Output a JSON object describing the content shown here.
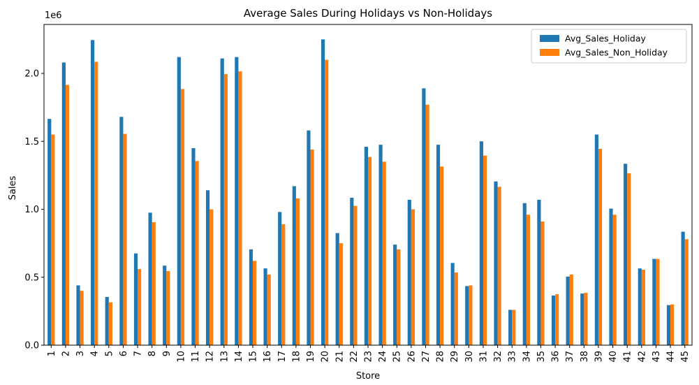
{
  "chart_data": {
    "type": "bar",
    "title": "Average Sales During Holidays vs Non-Holidays",
    "xlabel": "Store",
    "ylabel": "Sales",
    "y_offset_label": "1e6",
    "ylim": [
      0,
      2.36
    ],
    "yticks": [
      0.0,
      0.5,
      1.0,
      1.5,
      2.0
    ],
    "ytick_labels": [
      "0.0",
      "0.5",
      "1.0",
      "1.5",
      "2.0"
    ],
    "legend_position": "top-right",
    "grid": false,
    "categories": [
      "1",
      "2",
      "3",
      "4",
      "5",
      "6",
      "7",
      "8",
      "9",
      "10",
      "11",
      "12",
      "13",
      "14",
      "15",
      "16",
      "17",
      "18",
      "19",
      "20",
      "21",
      "22",
      "23",
      "24",
      "25",
      "26",
      "27",
      "28",
      "29",
      "30",
      "31",
      "32",
      "33",
      "34",
      "35",
      "36",
      "37",
      "38",
      "39",
      "40",
      "41",
      "42",
      "43",
      "44",
      "45"
    ],
    "series": [
      {
        "name": "Avg_Sales_Holiday",
        "color": "#1f77b4",
        "values": [
          1.665,
          2.08,
          0.44,
          2.245,
          0.355,
          1.68,
          0.675,
          0.975,
          0.585,
          2.12,
          1.45,
          1.14,
          2.11,
          2.12,
          0.705,
          0.565,
          0.98,
          1.17,
          1.58,
          2.25,
          0.825,
          1.085,
          1.46,
          1.475,
          0.74,
          1.07,
          1.89,
          1.475,
          0.605,
          0.435,
          1.5,
          1.205,
          0.26,
          1.045,
          1.07,
          0.365,
          0.505,
          0.38,
          1.55,
          1.005,
          1.335,
          0.565,
          0.635,
          0.295,
          0.835
        ]
      },
      {
        "name": "Avg_Sales_Non_Holiday",
        "color": "#ff7f0e",
        "values": [
          1.55,
          1.915,
          0.4,
          2.085,
          0.315,
          1.555,
          0.56,
          0.905,
          0.545,
          1.885,
          1.355,
          1.0,
          1.995,
          2.015,
          0.62,
          0.52,
          0.89,
          1.08,
          1.44,
          2.1,
          0.75,
          1.025,
          1.385,
          1.35,
          0.705,
          1.0,
          1.77,
          1.315,
          0.535,
          0.44,
          1.395,
          1.165,
          0.26,
          0.96,
          0.91,
          0.375,
          0.52,
          0.385,
          1.445,
          0.96,
          1.265,
          0.555,
          0.635,
          0.3,
          0.78
        ]
      }
    ]
  }
}
